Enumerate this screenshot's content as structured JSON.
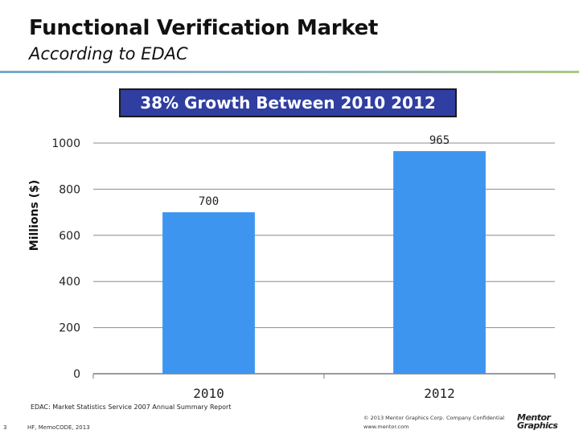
{
  "slide": {
    "title": "Functional Verification Market",
    "subtitle": "According to EDAC",
    "source": "EDAC: Market Statistics Service 2007 Annual Summary Report",
    "page_number": "3",
    "footer_left": "HF, MemoCODE, 2013",
    "copyright": "© 2013 Mentor Graphics Corp.",
    "confidential": "Company Confidential",
    "website": "www.mentor.com",
    "logo_line1": "Mentor",
    "logo_line2": "Graphics"
  },
  "colors": {
    "bar": "#3d95f0",
    "banner_bg": "#2f3ea0",
    "gridline": "#8c8c8c"
  },
  "chart_data": {
    "type": "bar",
    "title": "38% Growth Between 2010 2012",
    "ylabel": "Millions ($)",
    "xlabel": "",
    "categories": [
      "2010",
      "2012"
    ],
    "values": [
      700,
      965
    ],
    "data_labels": [
      "700",
      "965"
    ],
    "ylim": [
      0,
      1000
    ],
    "yticks": [
      "0",
      "200",
      "400",
      "600",
      "800",
      "1000"
    ],
    "grid": true
  }
}
